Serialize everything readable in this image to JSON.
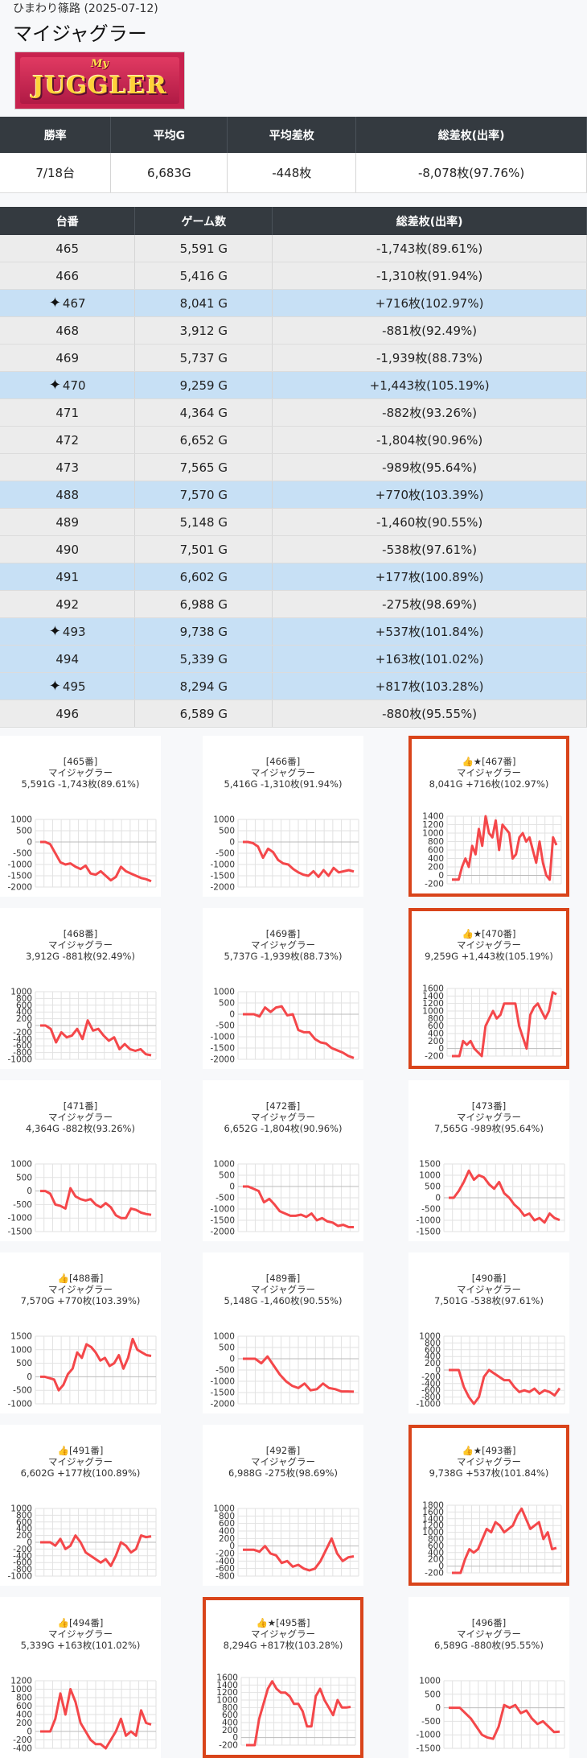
{
  "header": {
    "store": "ひまわり篠路 (2025-07-12)",
    "title": "マイジャグラー"
  },
  "logo": {
    "sub": "My",
    "main": "JUGGLER"
  },
  "summary": {
    "headers": [
      "勝率",
      "平均G",
      "平均差枚",
      "総差枚(出率)"
    ],
    "values": [
      "7/18台",
      "6,683G",
      "-448枚",
      "-8,078枚(97.76%)"
    ]
  },
  "machines_table": {
    "headers": [
      "台番",
      "ゲーム数",
      "総差枚(出率)"
    ],
    "rows": [
      {
        "num": "465",
        "games": "5,591 G",
        "diff": "-1,743枚(89.61%)",
        "hi": false,
        "star": false
      },
      {
        "num": "466",
        "games": "5,416 G",
        "diff": "-1,310枚(91.94%)",
        "hi": false,
        "star": false
      },
      {
        "num": "467",
        "games": "8,041 G",
        "diff": "+716枚(102.97%)",
        "hi": true,
        "star": true
      },
      {
        "num": "468",
        "games": "3,912 G",
        "diff": "-881枚(92.49%)",
        "hi": false,
        "star": false
      },
      {
        "num": "469",
        "games": "5,737 G",
        "diff": "-1,939枚(88.73%)",
        "hi": false,
        "star": false
      },
      {
        "num": "470",
        "games": "9,259 G",
        "diff": "+1,443枚(105.19%)",
        "hi": true,
        "star": true
      },
      {
        "num": "471",
        "games": "4,364 G",
        "diff": "-882枚(93.26%)",
        "hi": false,
        "star": false
      },
      {
        "num": "472",
        "games": "6,652 G",
        "diff": "-1,804枚(90.96%)",
        "hi": false,
        "star": false
      },
      {
        "num": "473",
        "games": "7,565 G",
        "diff": "-989枚(95.64%)",
        "hi": false,
        "star": false
      },
      {
        "num": "488",
        "games": "7,570 G",
        "diff": "+770枚(103.39%)",
        "hi": true,
        "star": false
      },
      {
        "num": "489",
        "games": "5,148 G",
        "diff": "-1,460枚(90.55%)",
        "hi": false,
        "star": false
      },
      {
        "num": "490",
        "games": "7,501 G",
        "diff": "-538枚(97.61%)",
        "hi": false,
        "star": false
      },
      {
        "num": "491",
        "games": "6,602 G",
        "diff": "+177枚(100.89%)",
        "hi": true,
        "star": false
      },
      {
        "num": "492",
        "games": "6,988 G",
        "diff": "-275枚(98.69%)",
        "hi": false,
        "star": false
      },
      {
        "num": "493",
        "games": "9,738 G",
        "diff": "+537枚(101.84%)",
        "hi": true,
        "star": true
      },
      {
        "num": "494",
        "games": "5,339 G",
        "diff": "+163枚(101.02%)",
        "hi": true,
        "star": false
      },
      {
        "num": "495",
        "games": "8,294 G",
        "diff": "+817枚(103.28%)",
        "hi": true,
        "star": true
      },
      {
        "num": "496",
        "games": "6,589 G",
        "diff": "-880枚(95.55%)",
        "hi": false,
        "star": false
      }
    ]
  },
  "chart_data": [
    {
      "type": "line",
      "label": "[465番]",
      "name": "マイジャグラー",
      "stats": "5,591G -1,743枚(89.61%)",
      "highlight": false,
      "yticks": [
        1000,
        500,
        0,
        -500,
        -1000,
        -1500,
        -2000
      ],
      "ylim": [
        -2100,
        1100
      ],
      "values": [
        0,
        0,
        -100,
        -500,
        -900,
        -1000,
        -950,
        -1100,
        -1200,
        -1050,
        -1400,
        -1450,
        -1300,
        -1500,
        -1700,
        -1550,
        -1100,
        -1300,
        -1400,
        -1500,
        -1600,
        -1650,
        -1743
      ]
    },
    {
      "type": "line",
      "label": "[466番]",
      "name": "マイジャグラー",
      "stats": "5,416G -1,310枚(91.94%)",
      "highlight": false,
      "yticks": [
        1000,
        500,
        0,
        -500,
        -1000,
        -1500,
        -2000
      ],
      "ylim": [
        -2100,
        1100
      ],
      "values": [
        0,
        0,
        -50,
        -200,
        -700,
        -300,
        -450,
        -800,
        -950,
        -1000,
        -1200,
        -1350,
        -1450,
        -1500,
        -1300,
        -1550,
        -1250,
        -1500,
        -1150,
        -1350,
        -1300,
        -1250,
        -1310
      ]
    },
    {
      "type": "line",
      "label": "[467番]",
      "name": "マイジャグラー",
      "stats": "8,041G +716枚(102.97%)",
      "highlight": true,
      "thumb": true,
      "star": true,
      "yticks": [
        1400,
        1200,
        1000,
        800,
        600,
        400,
        200,
        0,
        -200
      ],
      "ylim": [
        -300,
        1500
      ],
      "values": [
        -100,
        -100,
        -100,
        200,
        400,
        200,
        700,
        500,
        1100,
        700,
        1400,
        1000,
        900,
        1300,
        600,
        1200,
        1100,
        1000,
        400,
        500,
        900,
        1000,
        800,
        900,
        600,
        300,
        800,
        300,
        0,
        -100,
        900,
        716
      ]
    },
    {
      "type": "line",
      "label": "[468番]",
      "name": "マイジャグラー",
      "stats": "3,912G -881枚(92.49%)",
      "highlight": false,
      "yticks": [
        1000,
        800,
        600,
        400,
        200,
        0,
        -200,
        -400,
        -600,
        -800,
        -1000
      ],
      "ylim": [
        -1100,
        1100
      ],
      "values": [
        0,
        0,
        -100,
        -500,
        -200,
        -350,
        -300,
        -100,
        -400,
        150,
        -150,
        -100,
        -300,
        -450,
        -350,
        -700,
        -550,
        -700,
        -750,
        -700,
        -850,
        -881
      ]
    },
    {
      "type": "line",
      "label": "[469番]",
      "name": "マイジャグラー",
      "stats": "5,737G -1,939枚(88.73%)",
      "highlight": false,
      "yticks": [
        1000,
        500,
        0,
        -500,
        -1000,
        -1500,
        -2000
      ],
      "ylim": [
        -2100,
        1100
      ],
      "values": [
        0,
        0,
        0,
        -100,
        300,
        100,
        300,
        350,
        -50,
        0,
        -700,
        -800,
        -800,
        -1100,
        -1250,
        -1300,
        -1500,
        -1600,
        -1700,
        -1850,
        -1939
      ]
    },
    {
      "type": "line",
      "label": "[470番]",
      "name": "マイジャグラー",
      "stats": "9,259G +1,443枚(105.19%)",
      "highlight": true,
      "thumb": true,
      "star": true,
      "yticks": [
        1600,
        1400,
        1200,
        1000,
        800,
        600,
        400,
        200,
        0,
        -200
      ],
      "ylim": [
        -300,
        1700
      ],
      "values": [
        -200,
        -200,
        -200,
        200,
        100,
        200,
        0,
        -100,
        -200,
        600,
        800,
        1000,
        800,
        900,
        1200,
        1200,
        1200,
        1200,
        600,
        300,
        0,
        900,
        1100,
        1200,
        1000,
        800,
        1000,
        1500,
        1443
      ]
    },
    {
      "type": "line",
      "label": "[471番]",
      "name": "マイジャグラー",
      "stats": "4,364G -882枚(93.26%)",
      "highlight": false,
      "yticks": [
        1000,
        500,
        0,
        -500,
        -1000,
        -1500
      ],
      "ylim": [
        -1600,
        1100
      ],
      "values": [
        0,
        0,
        -100,
        -500,
        -550,
        -650,
        100,
        -200,
        -300,
        -350,
        -300,
        -500,
        -600,
        -450,
        -600,
        -900,
        -1000,
        -1000,
        -650,
        -700,
        -800,
        -850,
        -882
      ]
    },
    {
      "type": "line",
      "label": "[472番]",
      "name": "マイジャグラー",
      "stats": "6,652G -1,804枚(90.96%)",
      "highlight": false,
      "yticks": [
        1000,
        500,
        0,
        -500,
        -1000,
        -1500,
        -2000
      ],
      "ylim": [
        -2100,
        1100
      ],
      "values": [
        0,
        0,
        -100,
        -200,
        -700,
        -550,
        -800,
        -1100,
        -1200,
        -1300,
        -1300,
        -1250,
        -1350,
        -1200,
        -1500,
        -1400,
        -1550,
        -1600,
        -1750,
        -1700,
        -1800,
        -1804
      ]
    },
    {
      "type": "line",
      "label": "[473番]",
      "name": "マイジャグラー",
      "stats": "7,565G -989枚(95.64%)",
      "highlight": false,
      "yticks": [
        1500,
        1000,
        500,
        0,
        -500,
        -1000,
        -1500
      ],
      "ylim": [
        -1600,
        1600
      ],
      "values": [
        0,
        0,
        300,
        700,
        1200,
        800,
        1000,
        900,
        600,
        400,
        700,
        200,
        0,
        -300,
        -500,
        -800,
        -700,
        -1000,
        -900,
        -1100,
        -700,
        -900,
        -989
      ]
    },
    {
      "type": "line",
      "label": "[488番]",
      "name": "マイジャグラー",
      "stats": "7,570G +770枚(103.39%)",
      "highlight": false,
      "thumb": true,
      "yticks": [
        1500,
        1000,
        500,
        0,
        -500,
        -1000
      ],
      "ylim": [
        -1100,
        1600
      ],
      "values": [
        0,
        0,
        -50,
        -100,
        -500,
        -300,
        100,
        300,
        900,
        700,
        1200,
        1100,
        900,
        600,
        700,
        400,
        500,
        800,
        300,
        700,
        1400,
        1000,
        900,
        800,
        770
      ]
    },
    {
      "type": "line",
      "label": "[489番]",
      "name": "マイジャグラー",
      "stats": "5,148G -1,460枚(90.55%)",
      "highlight": false,
      "yticks": [
        1000,
        500,
        0,
        -500,
        -1000,
        -1500,
        -2000
      ],
      "ylim": [
        -2100,
        1100
      ],
      "values": [
        0,
        0,
        0,
        -200,
        100,
        -300,
        -700,
        -1000,
        -1200,
        -1300,
        -1100,
        -1400,
        -1350,
        -1100,
        -1300,
        -1350,
        -1450,
        -1450,
        -1460
      ]
    },
    {
      "type": "line",
      "label": "[490番]",
      "name": "マイジャグラー",
      "stats": "7,501G -538枚(97.61%)",
      "highlight": false,
      "yticks": [
        1000,
        800,
        600,
        400,
        200,
        0,
        -200,
        -400,
        -600,
        -800,
        -1000
      ],
      "ylim": [
        -1100,
        1100
      ],
      "values": [
        0,
        0,
        0,
        -500,
        -800,
        -1000,
        -800,
        -200,
        0,
        -100,
        -200,
        -300,
        -300,
        -500,
        -650,
        -600,
        -650,
        -550,
        -700,
        -600,
        -650,
        -750,
        -538
      ]
    },
    {
      "type": "line",
      "label": "[491番]",
      "name": "マイジャグラー",
      "stats": "6,602G +177枚(100.89%)",
      "highlight": false,
      "thumb": true,
      "yticks": [
        1000,
        800,
        600,
        400,
        200,
        0,
        -200,
        -400,
        -600,
        -800,
        -1000
      ],
      "ylim": [
        -1100,
        1100
      ],
      "values": [
        0,
        0,
        0,
        -100,
        100,
        -200,
        -100,
        200,
        0,
        -300,
        -400,
        -500,
        -600,
        -500,
        -700,
        -400,
        0,
        -100,
        -300,
        -200,
        200,
        150,
        177
      ]
    },
    {
      "type": "line",
      "label": "[492番]",
      "name": "マイジャグラー",
      "stats": "6,988G -275枚(98.69%)",
      "highlight": false,
      "yticks": [
        1000,
        800,
        600,
        400,
        200,
        0,
        -200,
        -400,
        -600,
        -800
      ],
      "ylim": [
        -900,
        1100
      ],
      "values": [
        -100,
        -100,
        -100,
        -150,
        0,
        -200,
        -250,
        -450,
        -400,
        -550,
        -500,
        -600,
        -650,
        -600,
        -400,
        -100,
        200,
        -200,
        -400,
        -300,
        -275
      ]
    },
    {
      "type": "line",
      "label": "[493番]",
      "name": "マイジャグラー",
      "stats": "9,738G +537枚(101.84%)",
      "highlight": true,
      "thumb": true,
      "star": true,
      "yticks": [
        1800,
        1600,
        1400,
        1200,
        1000,
        800,
        600,
        400,
        200,
        0,
        -200
      ],
      "ylim": [
        -300,
        1900
      ],
      "values": [
        -200,
        -200,
        -200,
        200,
        500,
        400,
        500,
        800,
        1100,
        1000,
        1300,
        1200,
        1000,
        1100,
        1200,
        1500,
        1700,
        1400,
        1100,
        1200,
        1300,
        800,
        1000,
        500,
        537
      ]
    },
    {
      "type": "line",
      "label": "[494番]",
      "name": "マイジャグラー",
      "stats": "5,339G +163枚(101.02%)",
      "highlight": false,
      "thumb": true,
      "yticks": [
        1200,
        1000,
        800,
        600,
        400,
        200,
        0,
        -200,
        -400
      ],
      "ylim": [
        -500,
        1300
      ],
      "values": [
        0,
        0,
        0,
        300,
        900,
        400,
        1000,
        700,
        200,
        0,
        -200,
        -300,
        -300,
        -400,
        -200,
        0,
        300,
        -100,
        0,
        -100,
        500,
        200,
        163
      ]
    },
    {
      "type": "line",
      "label": "[495番]",
      "name": "マイジャグラー",
      "stats": "8,294G +817枚(103.28%)",
      "highlight": true,
      "thumb": true,
      "star": true,
      "yticks": [
        1600,
        1400,
        1200,
        1000,
        800,
        600,
        400,
        200,
        0,
        -200
      ],
      "ylim": [
        -300,
        1700
      ],
      "values": [
        -200,
        -200,
        -200,
        500,
        900,
        1300,
        1500,
        1300,
        1200,
        1200,
        1100,
        900,
        900,
        700,
        300,
        300,
        1100,
        1300,
        1000,
        800,
        600,
        1000,
        800,
        800,
        817
      ]
    },
    {
      "type": "line",
      "label": "[496番]",
      "name": "マイジャグラー",
      "stats": "6,589G -880枚(95.55%)",
      "highlight": false,
      "yticks": [
        1000,
        500,
        0,
        -500,
        -1000,
        -1500
      ],
      "ylim": [
        -1600,
        1100
      ],
      "values": [
        0,
        0,
        0,
        -200,
        -400,
        -700,
        -1000,
        -1100,
        -1150,
        -700,
        100,
        0,
        100,
        -200,
        -100,
        -400,
        -600,
        -500,
        -700,
        -900,
        -880
      ]
    }
  ],
  "colors": {
    "line": "#f4474a",
    "highlight_border": "#d9441a",
    "header_bg": "#343a40",
    "row_hi": "#c7e0f5",
    "row": "#ececec"
  }
}
